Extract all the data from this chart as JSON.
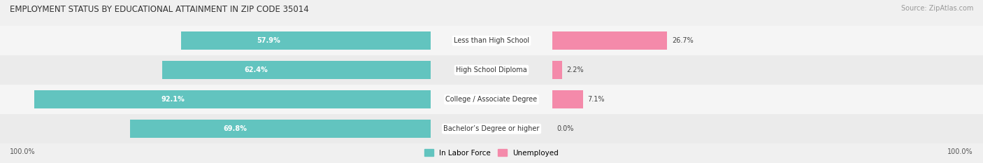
{
  "title": "EMPLOYMENT STATUS BY EDUCATIONAL ATTAINMENT IN ZIP CODE 35014",
  "source": "Source: ZipAtlas.com",
  "categories": [
    "Bachelor’s Degree or higher",
    "College / Associate Degree",
    "High School Diploma",
    "Less than High School"
  ],
  "labor_force": [
    69.8,
    92.1,
    62.4,
    57.9
  ],
  "unemployed": [
    0.0,
    7.1,
    2.2,
    26.7
  ],
  "labor_force_color": "#62c4bf",
  "unemployed_color": "#f48aaa",
  "row_bg_colors": [
    "#ebebeb",
    "#f5f5f5",
    "#ebebeb",
    "#f5f5f5"
  ],
  "title_color": "#333333",
  "axis_label_left": "100.0%",
  "axis_label_right": "100.0%",
  "legend_items": [
    "In Labor Force",
    "Unemployed"
  ],
  "legend_colors": [
    "#62c4bf",
    "#f48aaa"
  ],
  "label_half": 13,
  "xlim": 105
}
